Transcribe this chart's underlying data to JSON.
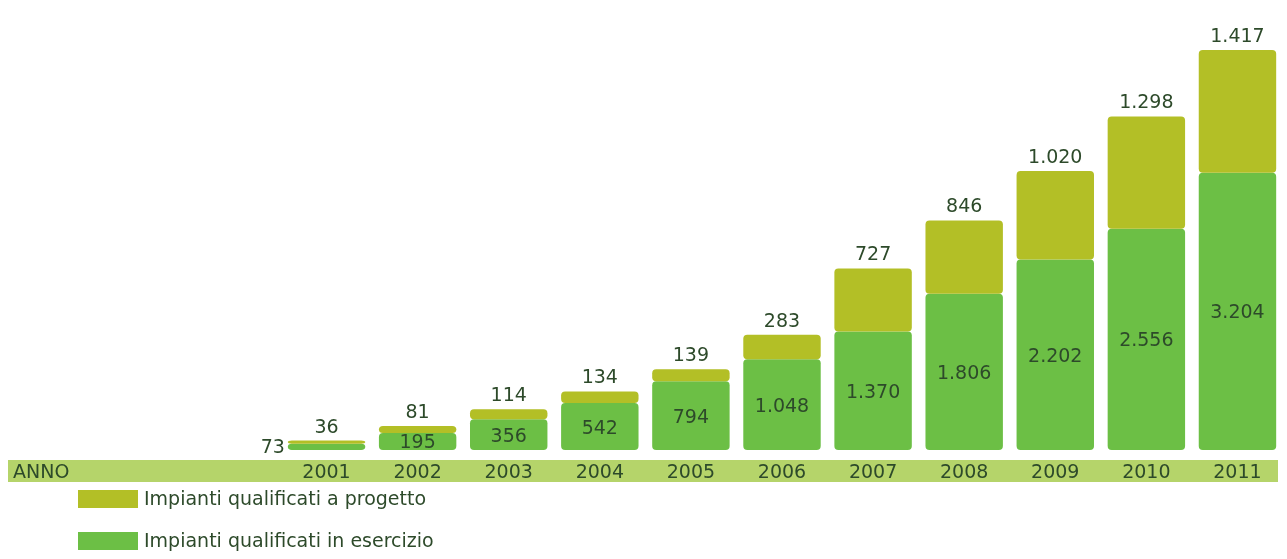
{
  "chart_data": {
    "type": "bar",
    "stacked": true,
    "annotations": [
      "ANNO"
    ],
    "categories": [
      "2001",
      "2002",
      "2003",
      "2004",
      "2005",
      "2006",
      "2007",
      "2008",
      "2009",
      "2010",
      "2011"
    ],
    "legend": "bottom left",
    "series": [
      {
        "name": "Impianti qualificati in esercizio",
        "color": "#6cbf45",
        "values": [
          73,
          195,
          356,
          542,
          794,
          1048,
          1370,
          1806,
          2202,
          2556,
          3204
        ],
        "value_labels": [
          "73",
          "195",
          "356",
          "542",
          "794",
          "1.048",
          "1.370",
          "1.806",
          "2.202",
          "2.556",
          "3.204"
        ]
      },
      {
        "name": "Impianti qualificati a progetto",
        "color": "#b3bf26",
        "values": [
          36,
          81,
          114,
          134,
          139,
          283,
          727,
          846,
          1020,
          1298,
          1417
        ],
        "value_labels": [
          "36",
          "81",
          "114",
          "134",
          "139",
          "283",
          "727",
          "846",
          "1.020",
          "1.298",
          "1.417"
        ]
      }
    ]
  }
}
